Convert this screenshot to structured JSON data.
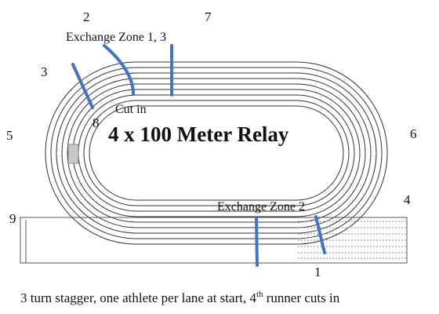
{
  "diagram": {
    "title": "4 x 100 Meter Relay",
    "exchange_zone_1_3": "Exchange Zone 1, 3",
    "exchange_zone_2": "Exchange Zone 2",
    "cut_in": "Cut in",
    "point_labels": {
      "l1": "1",
      "l2": "2",
      "l3": "3",
      "l4": "4",
      "l5": "5",
      "l6": "6",
      "l7": "7",
      "l8": "8",
      "l9": "9"
    },
    "caption": {
      "before": "3 turn stagger, one athlete per lane at start, 4",
      "superscript": "th",
      "after": " runner cuts in"
    },
    "colors": {
      "track_line": "#333333",
      "marker": "#4472c4",
      "shade": "#c8c8c8"
    }
  }
}
